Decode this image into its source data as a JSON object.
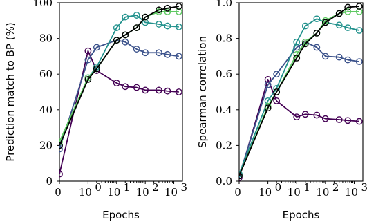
{
  "chart_data": [
    {
      "type": "line",
      "xlabel": "Epochs",
      "ylabel": "Prediction match to BP (%)",
      "xscale": "symlog",
      "xlim": [
        0,
        2000
      ],
      "ylim": [
        0,
        100
      ],
      "xticks": [
        {
          "value": 0,
          "label": "0"
        },
        {
          "value": 1,
          "label": "10",
          "exp": "0"
        },
        {
          "value": 10,
          "label": "10",
          "exp": "1"
        },
        {
          "value": 100,
          "label": "10",
          "exp": "2"
        },
        {
          "value": 1000,
          "label": "10",
          "exp": "3"
        }
      ],
      "yticks": [
        {
          "value": 0,
          "label": "0"
        },
        {
          "value": 20,
          "label": "20"
        },
        {
          "value": 40,
          "label": "40"
        },
        {
          "value": 60,
          "label": "60"
        },
        {
          "value": 80,
          "label": "80"
        },
        {
          "value": 100,
          "label": "100"
        }
      ],
      "x": [
        0,
        1,
        2,
        10,
        20,
        50,
        100,
        300,
        600,
        1500
      ],
      "series": [
        {
          "color": "#440154",
          "values": [
            4,
            73,
            62,
            55,
            53,
            52.5,
            51,
            51,
            50.5,
            50
          ]
        },
        {
          "color": "#3b528b",
          "values": [
            18,
            68,
            75,
            79,
            78,
            74,
            72,
            72,
            71,
            70
          ]
        },
        {
          "color": "#21918c",
          "values": [
            20,
            58,
            64,
            86,
            92,
            93,
            89,
            88,
            87,
            86.5
          ]
        },
        {
          "color": "#5ec962",
          "values": [
            22,
            58,
            63,
            79,
            82,
            86,
            92,
            95,
            95,
            95
          ]
        },
        {
          "color": "#000000",
          "values": [
            20,
            57,
            63,
            79,
            82,
            86,
            92,
            96,
            97,
            98
          ]
        }
      ]
    },
    {
      "type": "line",
      "xlabel": "Epochs",
      "ylabel": "Spearman correlation",
      "xscale": "symlog",
      "xlim": [
        0,
        2000
      ],
      "ylim": [
        0,
        1
      ],
      "xticks": [
        {
          "value": 0,
          "label": "0"
        },
        {
          "value": 1,
          "label": "10",
          "exp": "0"
        },
        {
          "value": 10,
          "label": "10",
          "exp": "1"
        },
        {
          "value": 100,
          "label": "10",
          "exp": "2"
        },
        {
          "value": 1000,
          "label": "10",
          "exp": "3"
        }
      ],
      "yticks": [
        {
          "value": 0,
          "label": "0.0"
        },
        {
          "value": 0.2,
          "label": "0.2"
        },
        {
          "value": 0.4,
          "label": "0.4"
        },
        {
          "value": 0.6,
          "label": "0.6"
        },
        {
          "value": 0.8,
          "label": "0.8"
        },
        {
          "value": 1.0,
          "label": "1.0"
        }
      ],
      "x": [
        0,
        1,
        2,
        10,
        20,
        50,
        100,
        300,
        600,
        1500
      ],
      "series": [
        {
          "color": "#440154",
          "values": [
            0.02,
            0.57,
            0.45,
            0.36,
            0.375,
            0.37,
            0.35,
            0.345,
            0.34,
            0.335
          ]
        },
        {
          "color": "#3b528b",
          "values": [
            0.03,
            0.54,
            0.6,
            0.75,
            0.78,
            0.75,
            0.7,
            0.695,
            0.68,
            0.67
          ]
        },
        {
          "color": "#21918c",
          "values": [
            0.04,
            0.45,
            0.52,
            0.78,
            0.87,
            0.91,
            0.89,
            0.875,
            0.86,
            0.845
          ]
        },
        {
          "color": "#5ec962",
          "values": [
            0.03,
            0.42,
            0.5,
            0.71,
            0.78,
            0.83,
            0.9,
            0.94,
            0.95,
            0.95
          ]
        },
        {
          "color": "#000000",
          "values": [
            0.03,
            0.41,
            0.5,
            0.69,
            0.77,
            0.83,
            0.89,
            0.94,
            0.975,
            0.98
          ]
        }
      ]
    }
  ]
}
